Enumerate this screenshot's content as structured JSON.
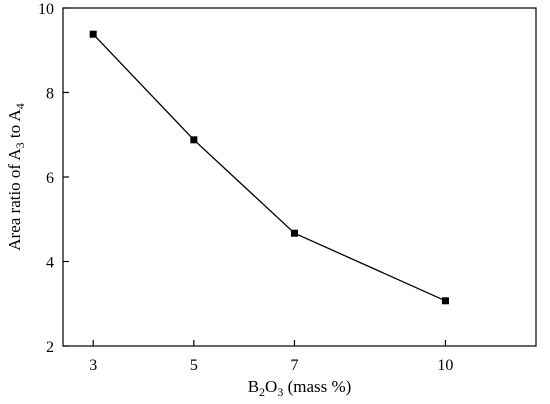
{
  "chart_data": {
    "type": "line",
    "x": [
      3,
      5,
      7,
      10
    ],
    "x_ticks": [
      "3",
      "5",
      "7",
      "10"
    ],
    "y_ticks": [
      "2",
      "4",
      "6",
      "8",
      "10"
    ],
    "series": [
      {
        "values": [
          9.38,
          6.88,
          4.67,
          3.07
        ],
        "color": "#000000",
        "marker": "square"
      }
    ],
    "xlim": [
      2.4,
      11.8
    ],
    "ylim": [
      2,
      10
    ],
    "grid": false,
    "xlabel": {
      "parts": [
        {
          "text": "B",
          "sub": false
        },
        {
          "text": "2",
          "sub": true
        },
        {
          "text": "O",
          "sub": false
        },
        {
          "text": "3",
          "sub": true
        },
        {
          "text": " (mass %)",
          "sub": false
        }
      ]
    },
    "ylabel": {
      "parts": [
        {
          "text": "Area ratio of A",
          "sub": false
        },
        {
          "text": "3",
          "sub": true
        },
        {
          "text": " to A",
          "sub": false
        },
        {
          "text": "4",
          "sub": true
        }
      ]
    }
  }
}
